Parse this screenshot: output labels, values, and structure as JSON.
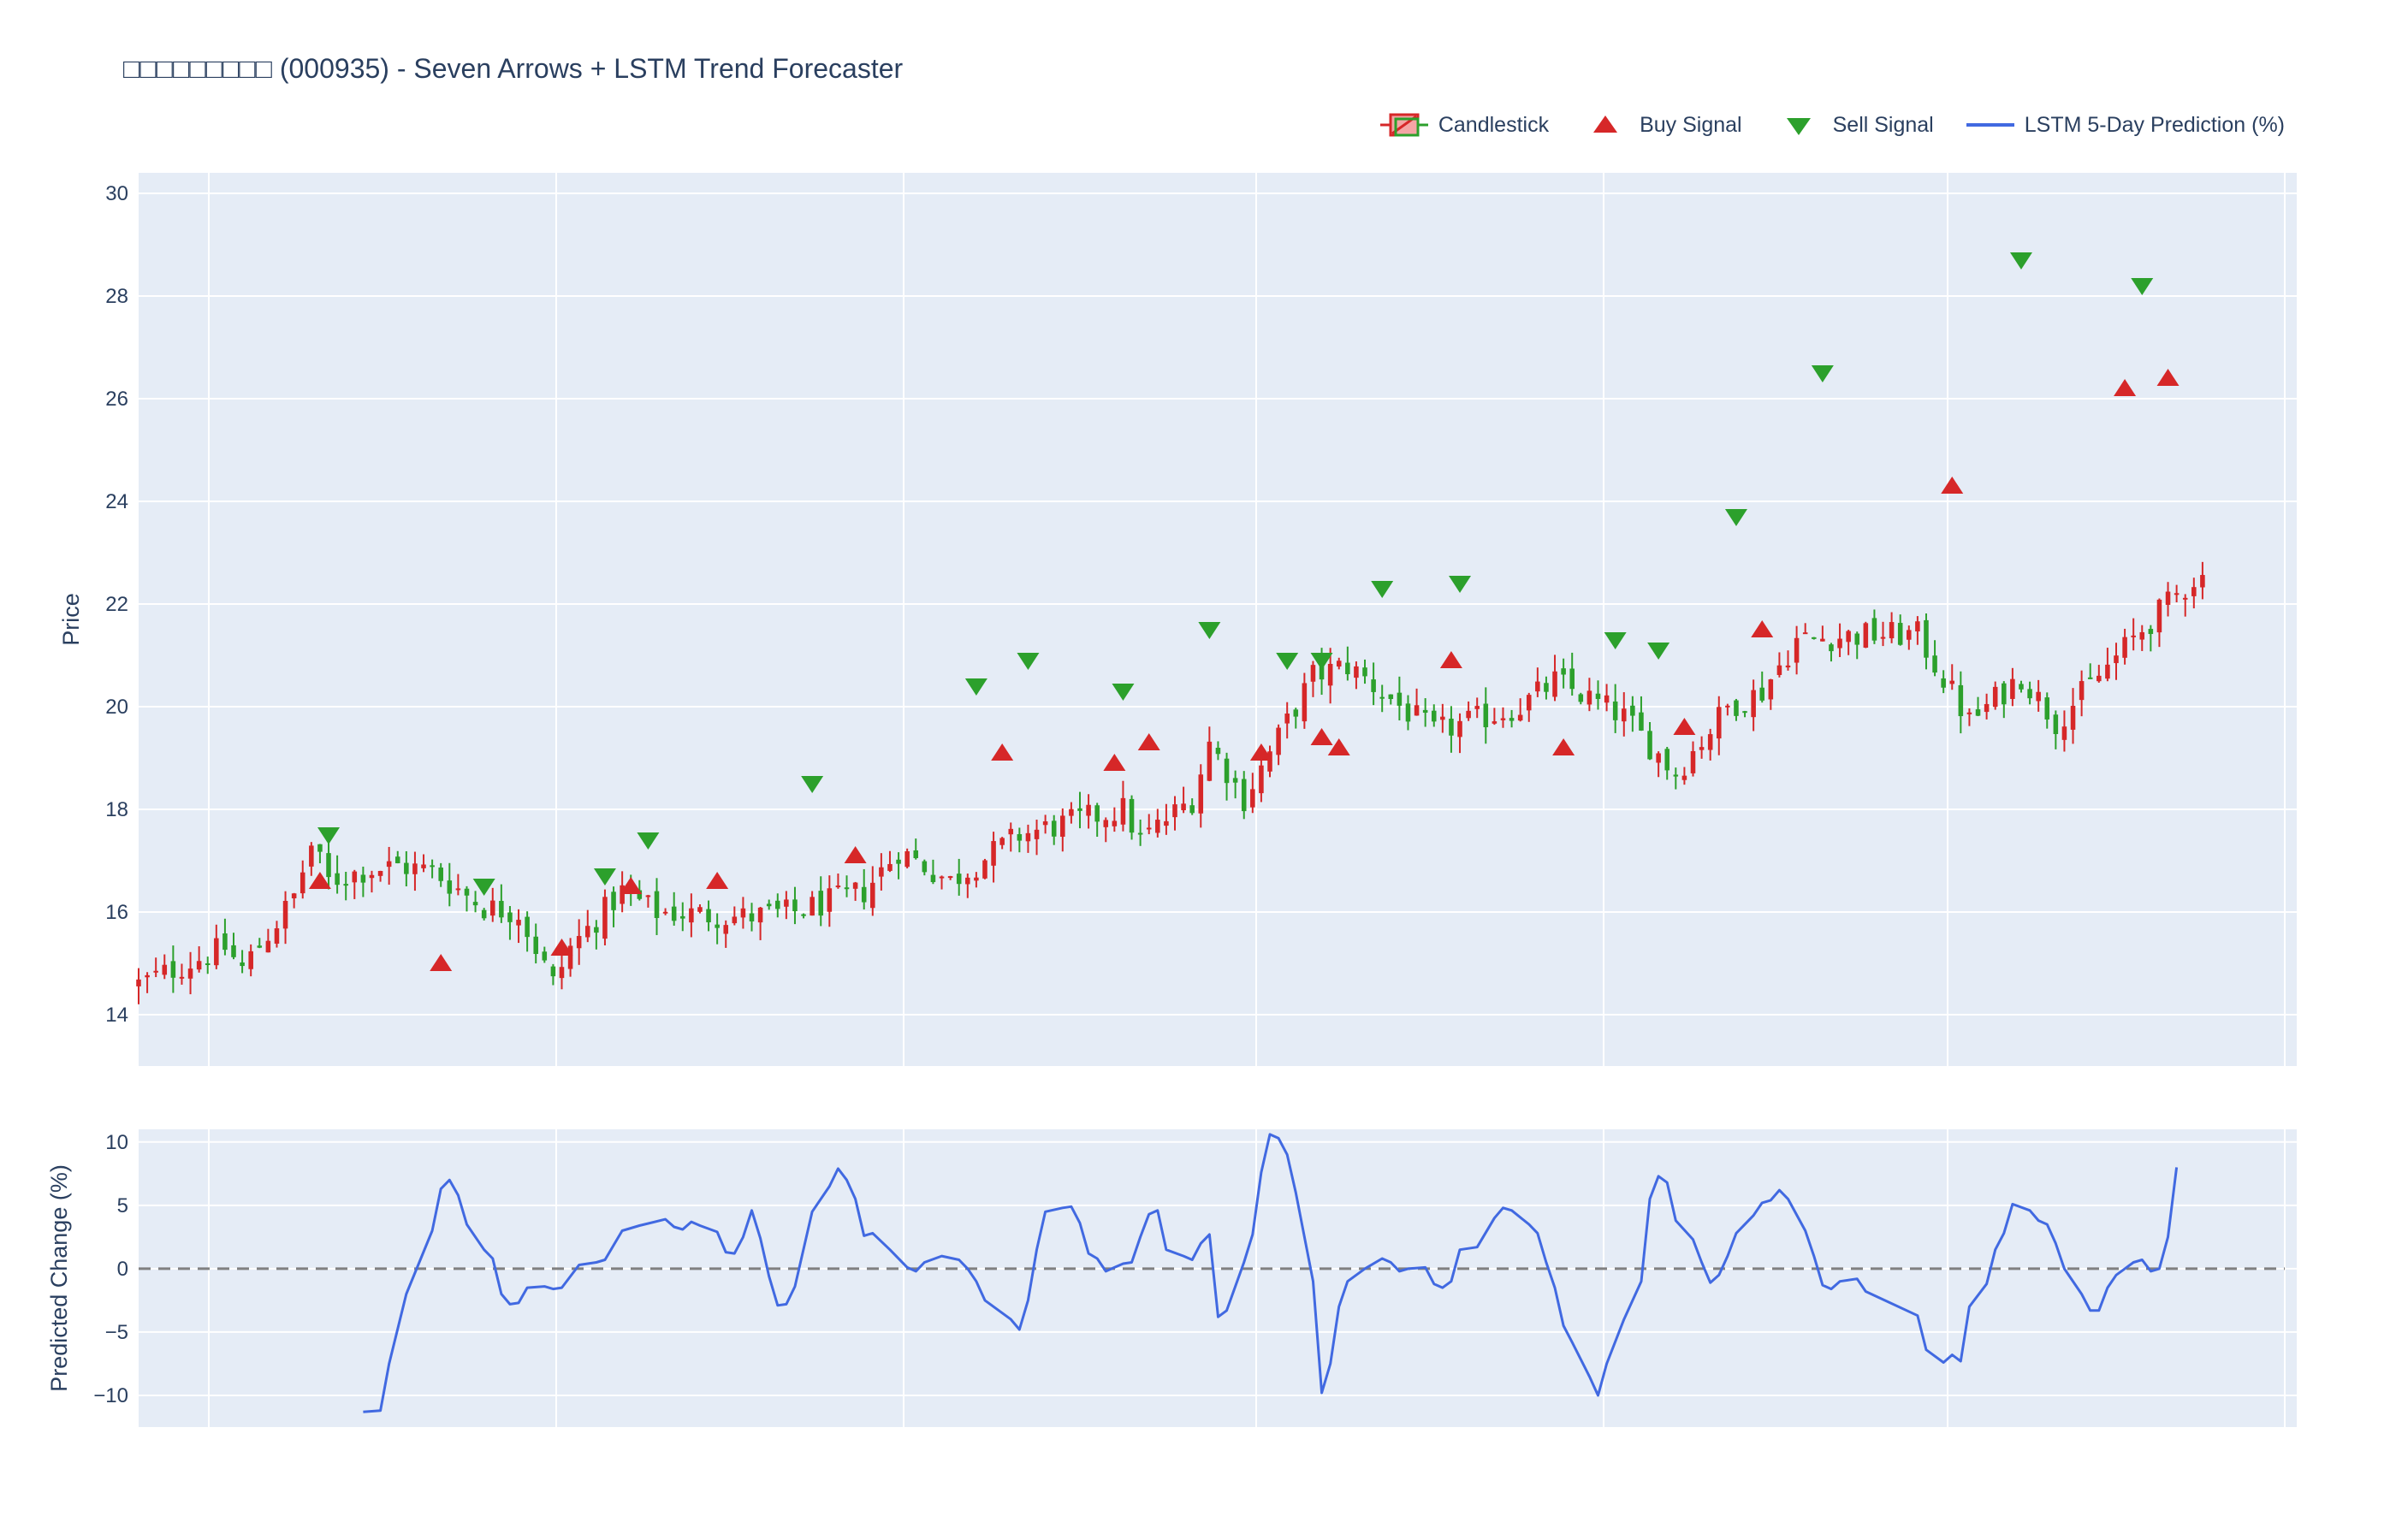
{
  "title": "□□□□□□□□□ (000935) - Seven Arrows + LSTM Trend Forecaster",
  "legend": [
    {
      "label": "Candlestick",
      "icon": "candlestick-icon"
    },
    {
      "label": "Buy Signal",
      "icon": "triangle-up-icon"
    },
    {
      "label": "Sell Signal",
      "icon": "triangle-down-icon"
    },
    {
      "label": "LSTM 5-Day Prediction (%)",
      "icon": "line-icon"
    }
  ],
  "colors": {
    "up": "#d62728",
    "down": "#2ca02c",
    "buy": "#d62728",
    "sell": "#2ca02c",
    "prediction": "#4169e1",
    "zero_line": "#808080",
    "plot_bg": "#e5ecf6",
    "grid": "#ffffff",
    "text": "#2a3f5f"
  },
  "chart_data": [
    {
      "type": "candlestick",
      "ylabel": "Price",
      "ylim": [
        13,
        30.4
      ],
      "yticks": [
        14,
        16,
        18,
        20,
        22,
        24,
        26,
        28,
        30
      ],
      "n_points": 240,
      "grid": true,
      "price_path": [
        [
          0,
          14.6
        ],
        [
          10,
          15.3
        ],
        [
          12,
          14.9
        ],
        [
          16,
          15.8
        ],
        [
          18,
          16.3
        ],
        [
          20,
          17.3
        ],
        [
          22,
          16.6
        ],
        [
          26,
          16.8
        ],
        [
          30,
          16.9
        ],
        [
          34,
          16.8
        ],
        [
          40,
          16.1
        ],
        [
          44,
          16.0
        ],
        [
          46,
          15.3
        ],
        [
          48,
          14.6
        ],
        [
          50,
          15.3
        ],
        [
          56,
          16.4
        ],
        [
          60,
          16.0
        ],
        [
          70,
          15.9
        ],
        [
          76,
          16.0
        ],
        [
          84,
          16.4
        ],
        [
          88,
          17.2
        ],
        [
          94,
          16.6
        ],
        [
          102,
          17.5
        ],
        [
          114,
          18.0
        ],
        [
          116,
          17.4
        ],
        [
          122,
          18.2
        ],
        [
          124,
          19.3
        ],
        [
          128,
          18.2
        ],
        [
          130,
          18.8
        ],
        [
          136,
          20.6
        ],
        [
          140,
          20.8
        ],
        [
          150,
          19.5
        ],
        [
          160,
          20.0
        ],
        [
          164,
          20.5
        ],
        [
          172,
          19.8
        ],
        [
          178,
          18.7
        ],
        [
          184,
          20.0
        ],
        [
          188,
          20.3
        ],
        [
          192,
          21.3
        ],
        [
          200,
          21.4
        ],
        [
          206,
          21.4
        ],
        [
          212,
          19.7
        ],
        [
          216,
          20.3
        ],
        [
          218,
          20.6
        ],
        [
          222,
          19.7
        ],
        [
          232,
          21.5
        ],
        [
          238,
          22.5
        ]
      ],
      "buy_signals": [
        [
          21,
          16.6
        ],
        [
          35,
          15.0
        ],
        [
          49,
          15.3
        ],
        [
          57,
          16.5
        ],
        [
          67,
          16.6
        ],
        [
          83,
          17.1
        ],
        [
          100,
          19.1
        ],
        [
          113,
          18.9
        ],
        [
          117,
          19.3
        ],
        [
          130,
          19.1
        ],
        [
          137,
          19.4
        ],
        [
          139,
          19.2
        ],
        [
          152,
          20.9
        ],
        [
          165,
          19.2
        ],
        [
          179,
          19.6
        ],
        [
          188,
          21.5
        ],
        [
          210,
          24.3
        ],
        [
          230,
          26.2
        ],
        [
          235,
          26.4
        ]
      ],
      "sell_signals": [
        [
          22,
          17.5
        ],
        [
          40,
          16.5
        ],
        [
          54,
          16.7
        ],
        [
          59,
          17.4
        ],
        [
          78,
          18.5
        ],
        [
          97,
          20.4
        ],
        [
          103,
          20.9
        ],
        [
          114,
          20.3
        ],
        [
          124,
          21.5
        ],
        [
          133,
          20.9
        ],
        [
          137,
          20.9
        ],
        [
          144,
          22.3
        ],
        [
          153,
          22.4
        ],
        [
          171,
          21.3
        ],
        [
          176,
          21.1
        ],
        [
          185,
          23.7
        ],
        [
          195,
          26.5
        ],
        [
          218,
          28.7
        ],
        [
          232,
          28.2
        ]
      ]
    },
    {
      "type": "line",
      "ylabel": "Predicted Change (%)",
      "ylim": [
        -12.5,
        11
      ],
      "yticks": [
        -10,
        -5,
        0,
        5,
        10
      ],
      "n_points": 240,
      "grid": true,
      "reference_line": 0,
      "series": [
        {
          "name": "LSTM 5-Day Prediction (%)",
          "points": [
            [
              26,
              -11.3
            ],
            [
              28,
              -11.2
            ],
            [
              29,
              -7.5
            ],
            [
              31,
              -2.0
            ],
            [
              34,
              3.0
            ],
            [
              35,
              6.3
            ],
            [
              36,
              7.0
            ],
            [
              37,
              5.8
            ],
            [
              38,
              3.5
            ],
            [
              40,
              1.5
            ],
            [
              41,
              0.8
            ],
            [
              42,
              -2.0
            ],
            [
              43,
              -2.8
            ],
            [
              44,
              -2.7
            ],
            [
              45,
              -1.5
            ],
            [
              47,
              -1.4
            ],
            [
              48,
              -1.6
            ],
            [
              49,
              -1.5
            ],
            [
              51,
              0.3
            ],
            [
              53,
              0.5
            ],
            [
              54,
              0.7
            ],
            [
              56,
              3.0
            ],
            [
              58,
              3.4
            ],
            [
              61,
              3.9
            ],
            [
              62,
              3.3
            ],
            [
              63,
              3.1
            ],
            [
              64,
              3.7
            ],
            [
              65,
              3.4
            ],
            [
              67,
              2.9
            ],
            [
              68,
              1.3
            ],
            [
              69,
              1.2
            ],
            [
              70,
              2.5
            ],
            [
              71,
              4.6
            ],
            [
              72,
              2.4
            ],
            [
              73,
              -0.6
            ],
            [
              74,
              -2.9
            ],
            [
              75,
              -2.8
            ],
            [
              76,
              -1.4
            ],
            [
              78,
              4.5
            ],
            [
              80,
              6.5
            ],
            [
              81,
              7.9
            ],
            [
              82,
              7.0
            ],
            [
              83,
              5.5
            ],
            [
              84,
              2.6
            ],
            [
              85,
              2.8
            ],
            [
              87,
              1.5
            ],
            [
              89,
              0.1
            ],
            [
              90,
              -0.2
            ],
            [
              91,
              0.5
            ],
            [
              93,
              1.0
            ],
            [
              95,
              0.7
            ],
            [
              96,
              0.0
            ],
            [
              97,
              -1.0
            ],
            [
              98,
              -2.5
            ],
            [
              99,
              -3.0
            ],
            [
              100,
              -3.5
            ],
            [
              101,
              -4.0
            ],
            [
              102,
              -4.8
            ],
            [
              103,
              -2.5
            ],
            [
              104,
              1.5
            ],
            [
              105,
              4.5
            ],
            [
              107,
              4.8
            ],
            [
              108,
              4.9
            ],
            [
              109,
              3.6
            ],
            [
              110,
              1.2
            ],
            [
              111,
              0.8
            ],
            [
              112,
              -0.2
            ],
            [
              113,
              0.1
            ],
            [
              114,
              0.4
            ],
            [
              115,
              0.5
            ],
            [
              116,
              2.5
            ],
            [
              117,
              4.3
            ],
            [
              118,
              4.6
            ],
            [
              119,
              1.5
            ],
            [
              121,
              1.0
            ],
            [
              122,
              0.7
            ],
            [
              123,
              2.0
            ],
            [
              124,
              2.7
            ],
            [
              125,
              -3.8
            ],
            [
              126,
              -3.3
            ],
            [
              128,
              0.5
            ],
            [
              129,
              2.7
            ],
            [
              130,
              7.6
            ],
            [
              131,
              10.6
            ],
            [
              132,
              10.3
            ],
            [
              133,
              9.0
            ],
            [
              134,
              6.0
            ],
            [
              135,
              2.5
            ],
            [
              136,
              -1.0
            ],
            [
              137,
              -9.8
            ],
            [
              138,
              -7.5
            ],
            [
              139,
              -3.0
            ],
            [
              140,
              -1.0
            ],
            [
              141,
              -0.5
            ],
            [
              142,
              0.0
            ],
            [
              144,
              0.8
            ],
            [
              145,
              0.5
            ],
            [
              146,
              -0.2
            ],
            [
              147,
              0.0
            ],
            [
              149,
              0.1
            ],
            [
              150,
              -1.2
            ],
            [
              151,
              -1.5
            ],
            [
              152,
              -1.0
            ],
            [
              153,
              1.5
            ],
            [
              155,
              1.7
            ],
            [
              157,
              4.0
            ],
            [
              158,
              4.8
            ],
            [
              159,
              4.6
            ],
            [
              161,
              3.5
            ],
            [
              162,
              2.8
            ],
            [
              163,
              0.5
            ],
            [
              164,
              -1.5
            ],
            [
              165,
              -4.5
            ],
            [
              166,
              -5.8
            ],
            [
              168,
              -8.5
            ],
            [
              169,
              -10.0
            ],
            [
              170,
              -7.5
            ],
            [
              172,
              -4.0
            ],
            [
              174,
              -1.0
            ],
            [
              175,
              5.5
            ],
            [
              176,
              7.3
            ],
            [
              177,
              6.8
            ],
            [
              178,
              3.8
            ],
            [
              180,
              2.3
            ],
            [
              181,
              0.5
            ],
            [
              182,
              -1.1
            ],
            [
              183,
              -0.5
            ],
            [
              184,
              1.0
            ],
            [
              185,
              2.8
            ],
            [
              187,
              4.2
            ],
            [
              188,
              5.2
            ],
            [
              189,
              5.4
            ],
            [
              190,
              6.2
            ],
            [
              191,
              5.5
            ],
            [
              193,
              3.0
            ],
            [
              194,
              1.0
            ],
            [
              195,
              -1.3
            ],
            [
              196,
              -1.6
            ],
            [
              197,
              -1.0
            ],
            [
              199,
              -0.8
            ],
            [
              200,
              -1.8
            ],
            [
              206,
              -3.7
            ],
            [
              207,
              -6.4
            ],
            [
              209,
              -7.4
            ],
            [
              210,
              -6.8
            ],
            [
              211,
              -7.3
            ],
            [
              212,
              -3.0
            ],
            [
              214,
              -1.2
            ],
            [
              215,
              1.5
            ],
            [
              216,
              2.8
            ],
            [
              217,
              5.1
            ],
            [
              219,
              4.6
            ],
            [
              220,
              3.8
            ],
            [
              221,
              3.5
            ],
            [
              222,
              2.0
            ],
            [
              223,
              0.0
            ],
            [
              225,
              -2.0
            ],
            [
              226,
              -3.3
            ],
            [
              227,
              -3.3
            ],
            [
              228,
              -1.5
            ],
            [
              229,
              -0.5
            ],
            [
              230,
              0.0
            ],
            [
              231,
              0.5
            ],
            [
              232,
              0.7
            ],
            [
              233,
              -0.2
            ],
            [
              234,
              0.0
            ],
            [
              235,
              2.5
            ],
            [
              236,
              8.0
            ]
          ]
        }
      ]
    }
  ]
}
